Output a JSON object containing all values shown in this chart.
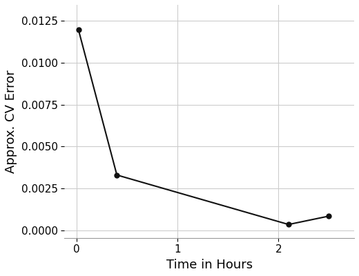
{
  "x": [
    0.02,
    0.4,
    2.1,
    2.5
  ],
  "y": [
    0.01195,
    0.0033,
    0.00035,
    0.00085
  ],
  "line_color": "#111111",
  "marker_color": "#111111",
  "marker_size": 5,
  "line_width": 1.5,
  "xlabel": "Time in Hours",
  "ylabel": "Approx. CV Error",
  "xlim": [
    -0.12,
    2.75
  ],
  "ylim": [
    -0.00045,
    0.01345
  ],
  "yticks": [
    0.0,
    0.0025,
    0.005,
    0.0075,
    0.01,
    0.0125
  ],
  "xticks": [
    0,
    1,
    2
  ],
  "grid_color": "#cccccc",
  "background_color": "#ffffff",
  "fig_background_color": "#ffffff",
  "xlabel_fontsize": 13,
  "ylabel_fontsize": 13,
  "tick_fontsize": 11
}
